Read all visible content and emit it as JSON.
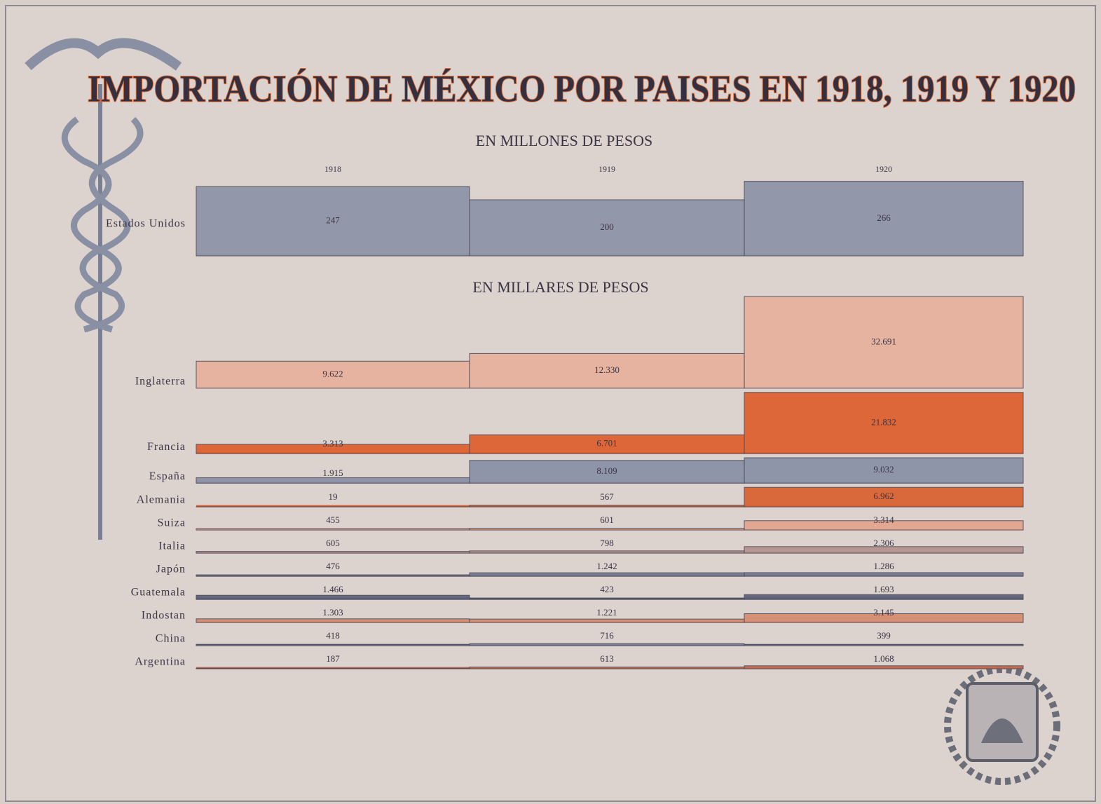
{
  "chart_data": [
    {
      "type": "bar",
      "title": "IMPORTACIÓN DE MÉXICO POR PAISES EN 1918, 1919 Y 1920",
      "subtitle": "EN MILLONES DE PESOS",
      "categories": [
        "1918",
        "1919",
        "1920"
      ],
      "series": [
        {
          "name": "Estados Unidos",
          "color": "#8c93a6",
          "values": [
            247,
            200,
            266
          ]
        }
      ]
    },
    {
      "type": "bar",
      "subtitle": "EN MILLARES DE PESOS",
      "series": [
        {
          "name": "Inglaterra",
          "color": "#e6b19d",
          "values": [
            9622,
            12330,
            32691
          ],
          "value_labels": [
            "9.622",
            "12.330",
            "32.691"
          ]
        },
        {
          "name": "Francia",
          "color": "#de5f2c",
          "values": [
            3313,
            6701,
            21832
          ],
          "value_labels": [
            "3.313",
            "6.701",
            "21.832"
          ]
        },
        {
          "name": "España",
          "color": "#8890a6",
          "values": [
            1915,
            8109,
            9032
          ],
          "value_labels": [
            "1.915",
            "8.109",
            "9.032"
          ]
        },
        {
          "name": "Alemania",
          "color": "#d9602e",
          "values": [
            19,
            567,
            6962
          ],
          "value_labels": [
            "19",
            "567",
            "6.962"
          ]
        },
        {
          "name": "Suiza",
          "color": "#e3a48e",
          "values": [
            455,
            601,
            3314
          ],
          "value_labels": [
            "455",
            "601",
            "3.314"
          ]
        },
        {
          "name": "Italia",
          "color": "#b5938f",
          "values": [
            605,
            798,
            2306
          ],
          "value_labels": [
            "605",
            "798",
            "2.306"
          ]
        },
        {
          "name": "Japón",
          "color": "#737a8f",
          "values": [
            476,
            1242,
            1286
          ],
          "value_labels": [
            "476",
            "1.242",
            "1.286"
          ]
        },
        {
          "name": "Guatemala",
          "color": "#5a6079",
          "values": [
            1466,
            423,
            1693
          ],
          "value_labels": [
            "1.466",
            "423",
            "1.693"
          ]
        },
        {
          "name": "Indostan",
          "color": "#d58c6e",
          "values": [
            1303,
            1221,
            3145
          ],
          "value_labels": [
            "1.303",
            "1.221",
            "3.145"
          ]
        },
        {
          "name": "China",
          "color": "#7a8098",
          "values": [
            418,
            716,
            399
          ],
          "value_labels": [
            "418",
            "716",
            "399"
          ]
        },
        {
          "name": "Argentina",
          "color": "#c46a4b",
          "values": [
            187,
            613,
            1068
          ],
          "value_labels": [
            "187",
            "613",
            "1.068"
          ]
        }
      ]
    }
  ]
}
